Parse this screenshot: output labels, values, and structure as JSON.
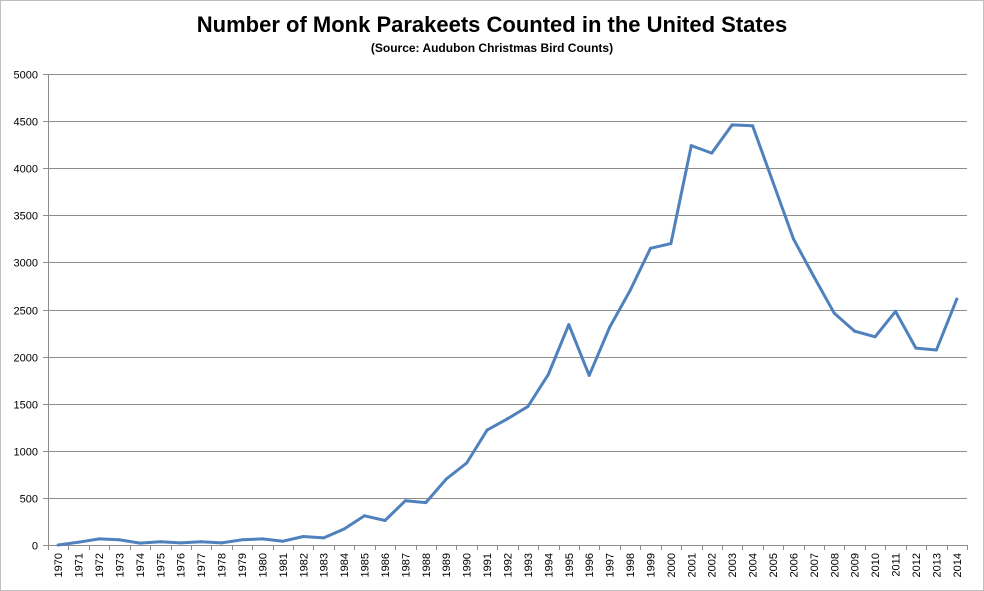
{
  "chart_data": {
    "type": "line",
    "title": "Number of Monk Parakeets Counted in the United States",
    "subtitle": "(Source: Audubon Christmas Bird Counts)",
    "xlabel": "",
    "ylabel": "",
    "ylim": [
      0,
      5000
    ],
    "yticks": [
      0,
      500,
      1000,
      1500,
      2000,
      2500,
      3000,
      3500,
      4000,
      4500,
      5000
    ],
    "grid": true,
    "legend": "none",
    "line_color": "#4f81bd",
    "categories": [
      "1970",
      "1971",
      "1972",
      "1973",
      "1974",
      "1975",
      "1976",
      "1977",
      "1978",
      "1979",
      "1980",
      "1981",
      "1982",
      "1983",
      "1984",
      "1985",
      "1986",
      "1987",
      "1988",
      "1989",
      "1990",
      "1991",
      "1992",
      "1993",
      "1994",
      "1995",
      "1996",
      "1997",
      "1998",
      "1999",
      "2000",
      "2001",
      "2002",
      "2003",
      "2004",
      "2005",
      "2006",
      "2007",
      "2008",
      "2009",
      "2010",
      "2011",
      "2012",
      "2013",
      "2014"
    ],
    "series": [
      {
        "values": [
          0,
          30,
          65,
          55,
          20,
          35,
          22,
          35,
          22,
          55,
          65,
          40,
          90,
          75,
          170,
          310,
          260,
          470,
          450,
          700,
          870,
          1220,
          1340,
          1470,
          1810,
          2340,
          1800,
          2310,
          2700,
          3150,
          3200,
          4240,
          4160,
          4460,
          4450,
          3850,
          3250,
          2850,
          2460,
          2270,
          2210,
          2480,
          2090,
          2070,
          2610
        ]
      }
    ]
  }
}
